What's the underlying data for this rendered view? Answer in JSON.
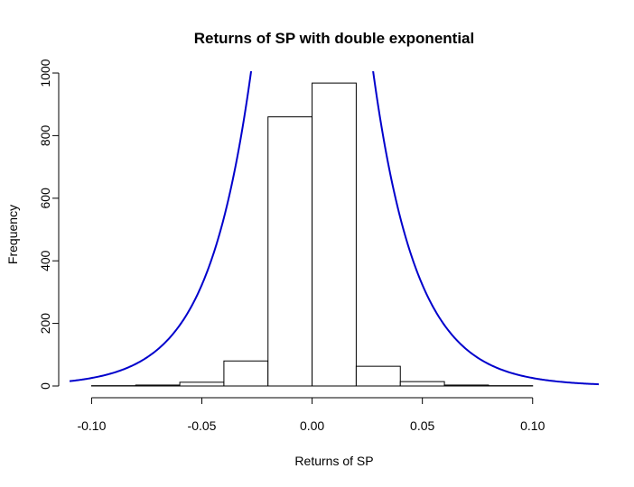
{
  "chart_data": {
    "type": "bar",
    "title": "Returns of SP with double exponential",
    "xlabel": "Returns of SP",
    "ylabel": "Frequency",
    "xlim": [
      -0.11,
      0.13
    ],
    "ylim": [
      0,
      1000
    ],
    "x_ticks": [
      -0.1,
      -0.05,
      0.0,
      0.05,
      0.1
    ],
    "x_tick_labels": [
      "-0.10",
      "-0.05",
      "0.00",
      "0.05",
      "0.10"
    ],
    "y_ticks": [
      0,
      200,
      400,
      600,
      800,
      1000
    ],
    "y_tick_labels": [
      "0",
      "200",
      "400",
      "600",
      "800",
      "1000"
    ],
    "bins": [
      {
        "x0": -0.1,
        "x1": -0.08,
        "count": 1
      },
      {
        "x0": -0.08,
        "x1": -0.06,
        "count": 3
      },
      {
        "x0": -0.06,
        "x1": -0.04,
        "count": 12
      },
      {
        "x0": -0.04,
        "x1": -0.02,
        "count": 80
      },
      {
        "x0": -0.02,
        "x1": 0.0,
        "count": 860
      },
      {
        "x0": 0.0,
        "x1": 0.02,
        "count": 968
      },
      {
        "x0": 0.02,
        "x1": 0.04,
        "count": 63
      },
      {
        "x0": 0.04,
        "x1": 0.06,
        "count": 14
      },
      {
        "x0": 0.06,
        "x1": 0.08,
        "count": 3
      },
      {
        "x0": 0.08,
        "x1": 0.1,
        "count": 1
      }
    ],
    "overlay": {
      "name": "double exponential density",
      "color": "#0000cc",
      "center": 0.0,
      "peak": 4100,
      "rate": 50.8
    }
  }
}
